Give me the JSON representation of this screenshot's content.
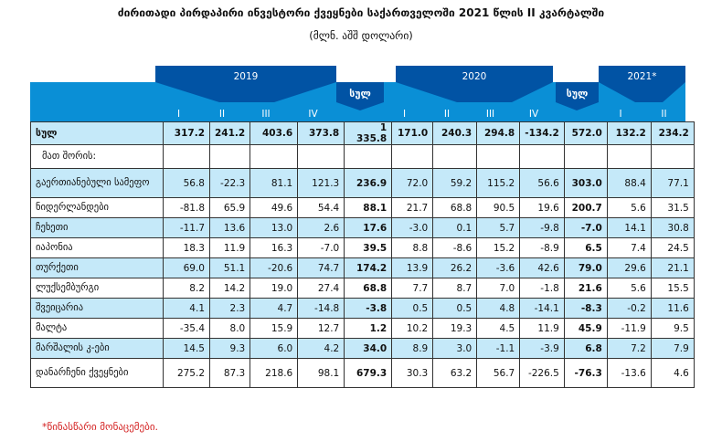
{
  "title": "ძირითადი პირდაპირი ინვესტორი ქვეყნები საქართველოში 2021 წლის II კვარტალში",
  "unit": "(მლნ. აშშ დოლარი)",
  "header": {
    "years": [
      "2019",
      "2020",
      "2021*"
    ],
    "total_label": "სულ",
    "quarters": [
      "I",
      "II",
      "III",
      "IV",
      "",
      "I",
      "II",
      "III",
      "IV",
      "",
      "I",
      "II"
    ]
  },
  "rows": [
    {
      "label": "სულ",
      "values": [
        "317.2",
        "241.2",
        "403.6",
        "373.8",
        "1 335.8",
        "171.0",
        "240.3",
        "294.8",
        "-134.2",
        "572.0",
        "132.2",
        "234.2"
      ]
    },
    {
      "label": "მათ შორის:",
      "values": [
        "",
        "",
        "",
        "",
        "",
        "",
        "",
        "",
        "",
        "",
        "",
        ""
      ]
    },
    {
      "label": "გაერთიანებული სამეფო",
      "values": [
        "56.8",
        "-22.3",
        "81.1",
        "121.3",
        "236.9",
        "72.0",
        "59.2",
        "115.2",
        "56.6",
        "303.0",
        "88.4",
        "77.1"
      ]
    },
    {
      "label": "ნიდერლანდები",
      "values": [
        "-81.8",
        "65.9",
        "49.6",
        "54.4",
        "88.1",
        "21.7",
        "68.8",
        "90.5",
        "19.6",
        "200.7",
        "5.6",
        "31.5"
      ]
    },
    {
      "label": "ჩეხეთი",
      "values": [
        "-11.7",
        "13.6",
        "13.0",
        "2.6",
        "17.6",
        "-3.0",
        "0.1",
        "5.7",
        "-9.8",
        "-7.0",
        "14.1",
        "30.8"
      ]
    },
    {
      "label": "იაპონია",
      "values": [
        "18.3",
        "11.9",
        "16.3",
        "-7.0",
        "39.5",
        "8.8",
        "-8.6",
        "15.2",
        "-8.9",
        "6.5",
        "7.4",
        "24.5"
      ]
    },
    {
      "label": "თურქეთი",
      "values": [
        "69.0",
        "51.1",
        "-20.6",
        "74.7",
        "174.2",
        "13.9",
        "26.2",
        "-3.6",
        "42.6",
        "79.0",
        "29.6",
        "21.1"
      ]
    },
    {
      "label": "ლუქსემბურგი",
      "values": [
        "8.2",
        "14.2",
        "19.0",
        "27.4",
        "68.8",
        "7.7",
        "8.7",
        "7.0",
        "-1.8",
        "21.6",
        "5.6",
        "15.5"
      ]
    },
    {
      "label": "შვეიცარია",
      "values": [
        "4.1",
        "2.3",
        "4.7",
        "-14.8",
        "-3.8",
        "0.5",
        "0.5",
        "4.8",
        "-14.1",
        "-8.3",
        "-0.2",
        "11.6"
      ]
    },
    {
      "label": "მალტა",
      "values": [
        "-35.4",
        "8.0",
        "15.9",
        "12.7",
        "1.2",
        "10.2",
        "19.3",
        "4.5",
        "11.9",
        "45.9",
        "-11.9",
        "9.5"
      ]
    },
    {
      "label": "მარშალის კ-ები",
      "values": [
        "14.5",
        "9.3",
        "6.0",
        "4.2",
        "34.0",
        "8.9",
        "3.0",
        "-1.1",
        "-3.9",
        "6.8",
        "7.2",
        "7.9"
      ]
    },
    {
      "label": "დანარჩენი ქვეყნები",
      "values": [
        "275.2",
        "87.3",
        "218.6",
        "98.1",
        "679.3",
        "30.3",
        "63.2",
        "56.7",
        "-226.5",
        "-76.3",
        "-13.6",
        "4.6"
      ]
    }
  ],
  "footnote": "*წინასწარი მონაცემები."
}
